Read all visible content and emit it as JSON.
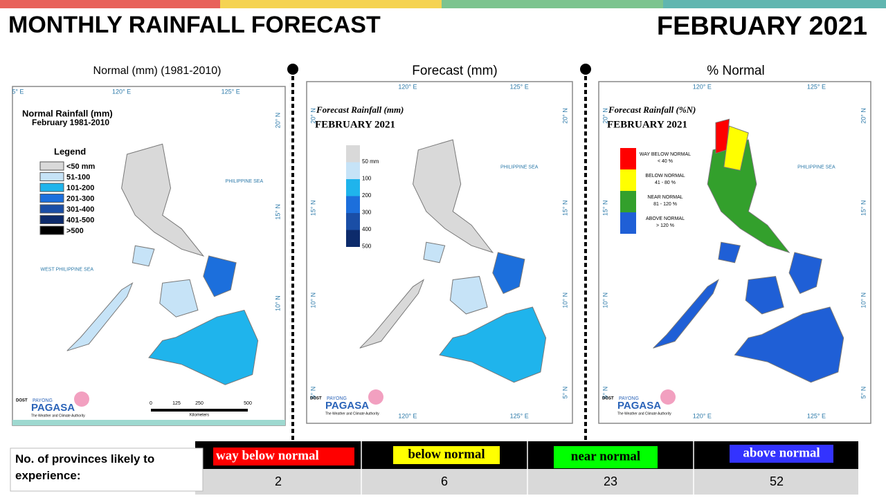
{
  "header": {
    "title": "MONTHLY RAINFALL FORECAST",
    "period": "FEBRUARY 2021"
  },
  "logo": {
    "agency": "DOST",
    "brand_top": "PAYONG",
    "brand": "PAGASA",
    "tagline": "The Weather and Climate Authority"
  },
  "panels": [
    {
      "caption": "Normal (mm) (1981-2010)",
      "map_title": "Normal Rainfall (mm)",
      "map_subtitle": "February 1981-2010",
      "legend_title": "Legend",
      "legend": [
        {
          "label": "<50 mm",
          "color": "#d9d9d9"
        },
        {
          "label": "51-100",
          "color": "#c6e3f7"
        },
        {
          "label": "101-200",
          "color": "#1fb4ec"
        },
        {
          "label": "201-300",
          "color": "#1c6fdc"
        },
        {
          "label": "301-400",
          "color": "#1a4ea6"
        },
        {
          "label": "401-500",
          "color": "#0d2b6b"
        },
        {
          "label": ">500",
          "color": "#000000"
        }
      ],
      "seas": [
        "PHILIPPINE SEA",
        "WEST PHILIPPINE SEA"
      ],
      "lon_labels": [
        "5° E",
        "120° E",
        "125° E"
      ],
      "lat_labels": [
        "20° N",
        "15° N",
        "10° N"
      ],
      "scale_labels": [
        "0",
        "125",
        "250",
        "500"
      ],
      "scale_unit": "Kilometers"
    },
    {
      "caption": "Forecast (mm)",
      "map_title": "Forecast Rainfall (mm)",
      "map_subtitle": "FEBRUARY 2021",
      "legend": [
        {
          "label": "50 mm",
          "color": "#d9d9d9"
        },
        {
          "label": "100",
          "color": "#c6e3f7"
        },
        {
          "label": "200",
          "color": "#1fb4ec"
        },
        {
          "label": "300",
          "color": "#1c6fdc"
        },
        {
          "label": "400",
          "color": "#1a4ea6"
        },
        {
          "label": "500",
          "color": "#0d2b6b"
        }
      ],
      "seas": [
        "PHILIPPINE SEA"
      ],
      "lon_labels": [
        "120° E",
        "125° E"
      ],
      "lat_labels": [
        "20° N",
        "15° N",
        "10° N",
        "5° N"
      ]
    },
    {
      "caption": "% Normal",
      "map_title": "Forecast Rainfall (%N)",
      "map_subtitle": "FEBRUARY 2021",
      "legend": [
        {
          "label": "WAY BELOW NORMAL",
          "range": "< 40 %",
          "color": "#ff0000"
        },
        {
          "label": "BELOW NORMAL",
          "range": "41 - 80 %",
          "color": "#ffff00"
        },
        {
          "label": "NEAR NORMAL",
          "range": "81 - 120 %",
          "color": "#33a02c"
        },
        {
          "label": "ABOVE NORMAL",
          "range": "> 120 %",
          "color": "#1f5fd6"
        }
      ],
      "seas": [
        "PHILIPPINE SEA"
      ],
      "lon_labels": [
        "120° E",
        "125° E"
      ],
      "lat_labels": [
        "20° N",
        "15° N",
        "10° N",
        "5° N"
      ]
    }
  ],
  "table": {
    "row_label": "No. of provinces likely to experience:",
    "categories": [
      {
        "label": "way below normal",
        "color": "#ff0000",
        "count": "2"
      },
      {
        "label": "below normal",
        "color": "#ffff00",
        "count": "6"
      },
      {
        "label": "near normal",
        "color": "#00ff00",
        "count": "23"
      },
      {
        "label": "above normal",
        "color": "#3333ff",
        "count": "52"
      }
    ]
  }
}
